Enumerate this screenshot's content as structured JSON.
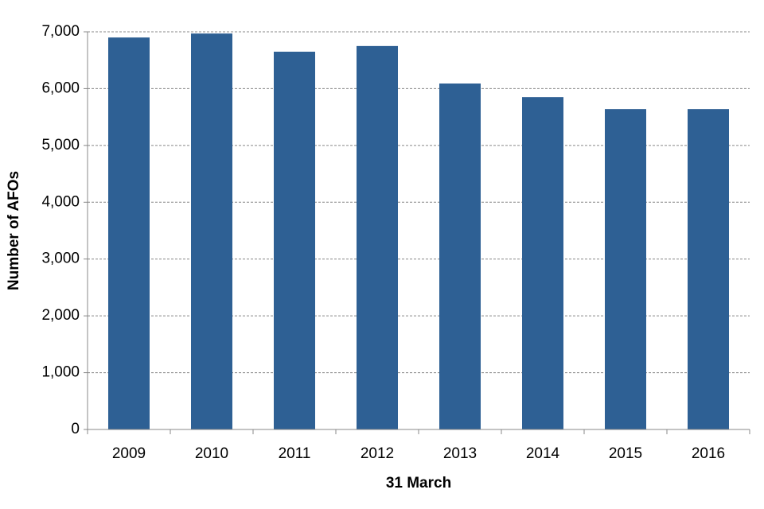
{
  "chart_data": {
    "type": "bar",
    "x_label": "31 March",
    "y_label": "Number of AFOs",
    "categories": [
      "2009",
      "2010",
      "2011",
      "2012",
      "2013",
      "2014",
      "2015",
      "2016"
    ],
    "values": [
      6900,
      6970,
      6650,
      6750,
      6090,
      5850,
      5640,
      5640
    ],
    "color": "#2e6094",
    "ylim": [
      0,
      7000
    ],
    "yticks": [
      0,
      {
        "value": 1000,
        "label": "1,000"
      },
      {
        "value": 2000,
        "label": "2,000"
      },
      {
        "value": 3000,
        "label": "3,000"
      },
      {
        "value": 4000,
        "label": "4,000"
      },
      {
        "value": 5000,
        "label": "5,000"
      },
      {
        "value": 6000,
        "label": "6,000"
      },
      {
        "value": 7000,
        "label": "7,000"
      }
    ],
    "grid": true
  }
}
